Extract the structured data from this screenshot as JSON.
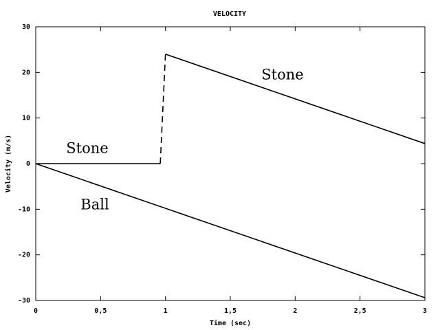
{
  "chart_data": {
    "type": "line",
    "title": "VELOCITY",
    "x_label": "Time (sec)",
    "y_label": "Velocity (m/s)",
    "xlim": [
      0,
      3
    ],
    "ylim": [
      -30,
      30
    ],
    "xticks": [
      0,
      {
        "value": 0.5,
        "label": "0,5"
      },
      1,
      {
        "value": 1.5,
        "label": "1,5"
      },
      2,
      {
        "value": 2.5,
        "label": "2,5"
      },
      3
    ],
    "yticks": [
      -30,
      -20,
      -10,
      0,
      10,
      20,
      30
    ],
    "grid": false,
    "color": "#000000",
    "series": [
      {
        "x": [
          0,
          3
        ],
        "values": [
          0,
          -29.4
        ],
        "dashed": false
      },
      {
        "x": [
          0,
          0.96
        ],
        "values": [
          0,
          0
        ],
        "dashed": false
      },
      {
        "x": [
          0.96,
          1
        ],
        "values": [
          0,
          24
        ],
        "dashed": true
      },
      {
        "x": [
          1,
          3
        ],
        "values": [
          24,
          4.4
        ],
        "dashed": false
      }
    ],
    "annotations": [
      "Stone",
      "Ball",
      "Stone"
    ]
  }
}
